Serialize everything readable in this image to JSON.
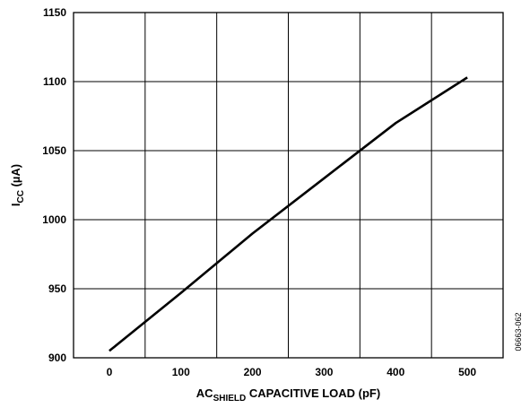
{
  "chart_data": {
    "type": "line",
    "title": "",
    "xlabel": {
      "main": "AC",
      "sub": "SHIELD",
      "rest": " CAPACITIVE LOAD (pF)"
    },
    "ylabel": {
      "main": "I",
      "sub": "CC",
      "rest": " (µA)"
    },
    "xlim": [
      -50,
      550
    ],
    "ylim": [
      900,
      1150
    ],
    "x_ticks": [
      0,
      100,
      200,
      300,
      400,
      500
    ],
    "y_ticks": [
      900,
      950,
      1000,
      1050,
      1100,
      1150
    ],
    "x_tick_labels": [
      "0",
      "100",
      "200",
      "300",
      "400",
      "500"
    ],
    "y_tick_labels": [
      "900",
      "950",
      "1000",
      "1050",
      "1100",
      "1150"
    ],
    "grid_x": [
      50,
      150,
      250,
      350,
      450
    ],
    "grid_y": [
      950,
      1000,
      1050,
      1100
    ],
    "grid": true,
    "legend": "none",
    "series": [
      {
        "x": [
          0,
          100,
          200,
          300,
          400,
          500
        ],
        "y": [
          905,
          947,
          990,
          1030,
          1070,
          1103
        ]
      }
    ],
    "line_color": "#000000"
  },
  "figure_id": "06663-062"
}
